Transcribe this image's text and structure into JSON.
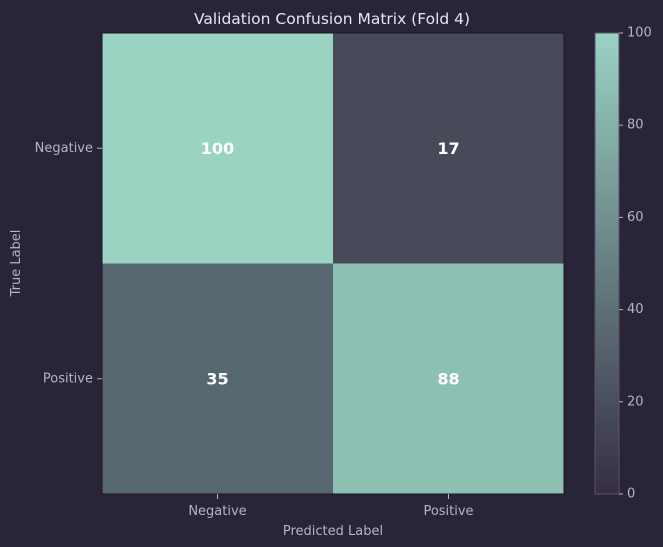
{
  "chart_data": {
    "type": "heatmap",
    "title": "Validation Confusion Matrix (Fold 4)",
    "xlabel": "Predicted Label",
    "ylabel": "True Label",
    "x_categories": [
      "Negative",
      "Positive"
    ],
    "y_categories": [
      "Negative",
      "Positive"
    ],
    "values": [
      [
        100,
        17
      ],
      [
        35,
        88
      ]
    ],
    "colorbar": {
      "range": [
        0,
        100
      ],
      "ticks": [
        0,
        20,
        40,
        60,
        80,
        100
      ]
    },
    "colors": {
      "background": "#2a2438",
      "low": "#352e44",
      "high": "#9ad3c2",
      "text": "#ffffff",
      "axis_text": "#b8b2c6",
      "title_text": "#e8e4f0"
    }
  }
}
